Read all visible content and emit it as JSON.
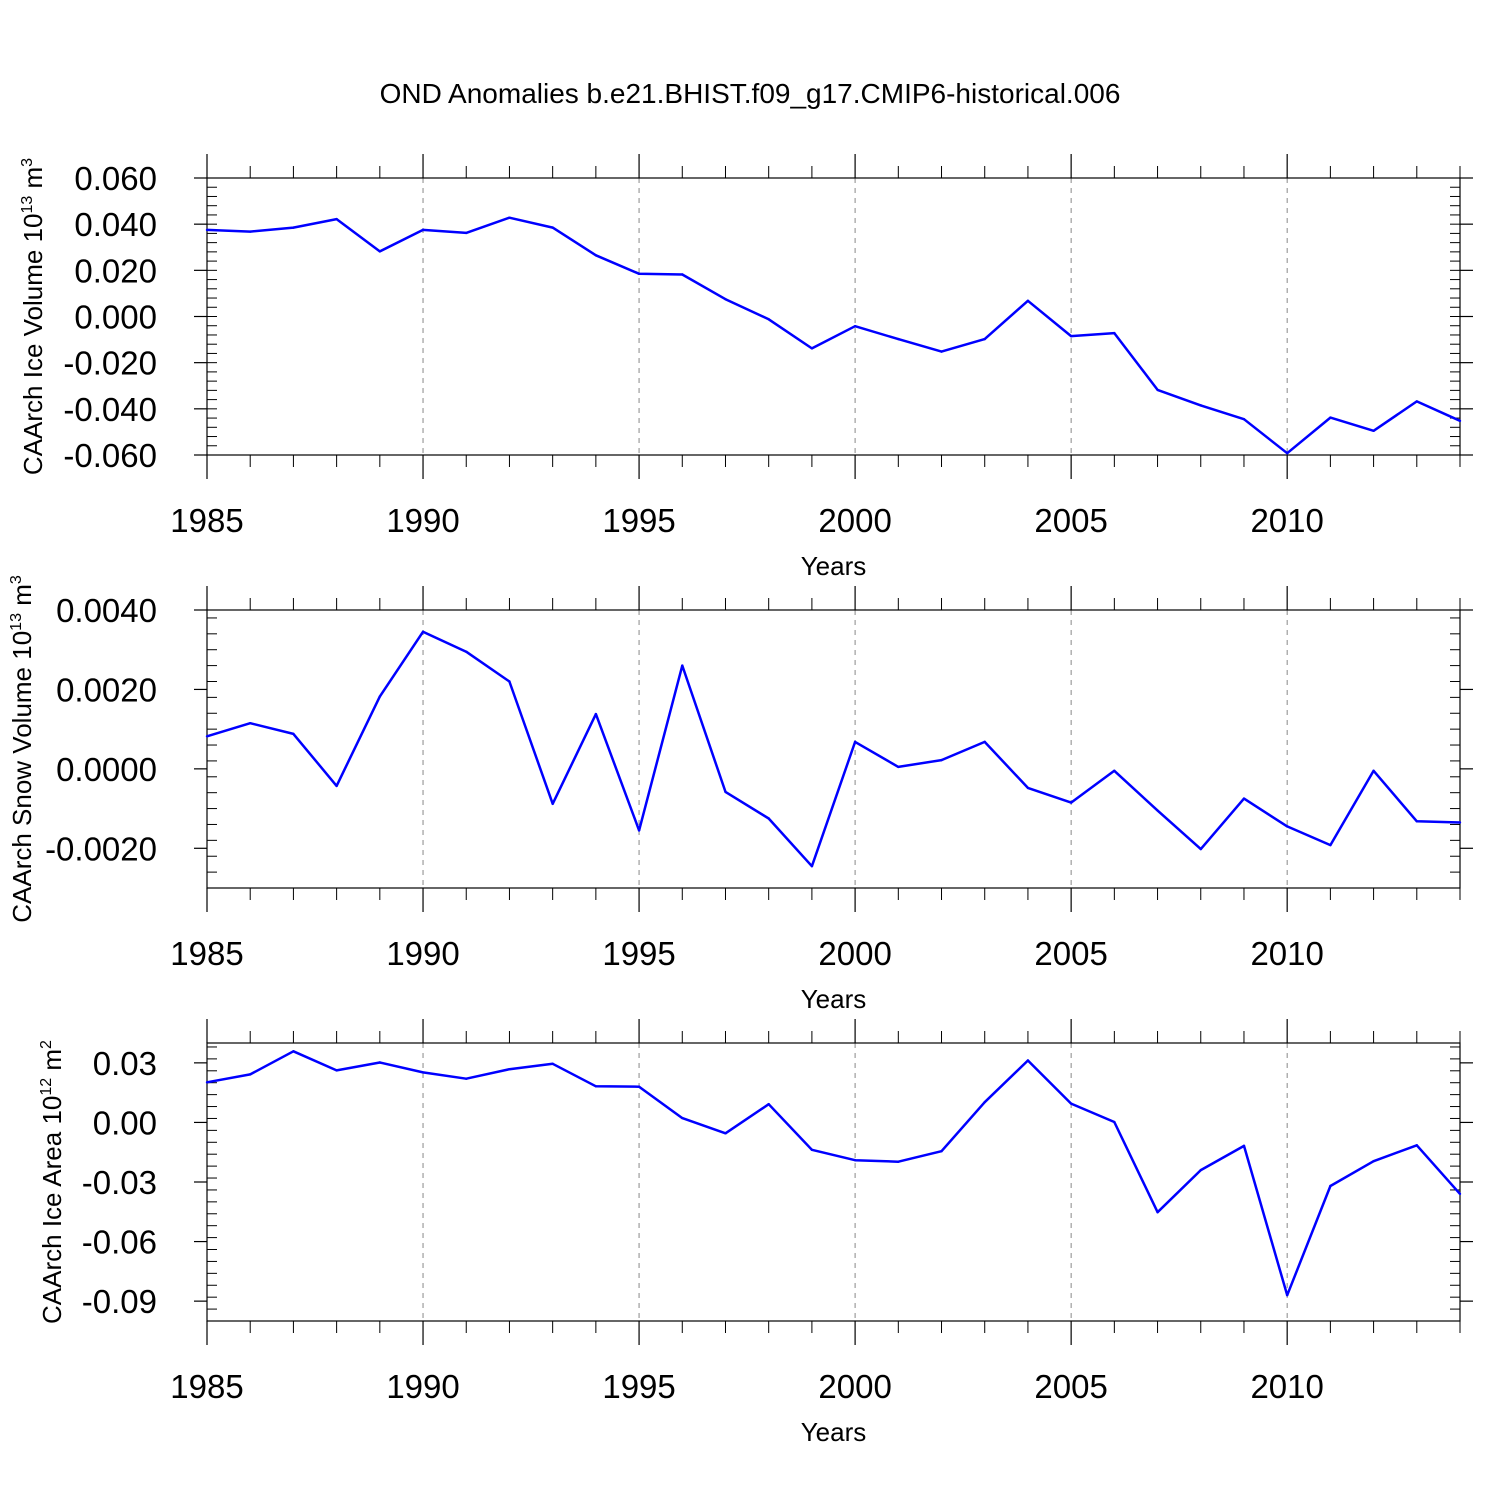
{
  "title": "OND Anomalies b.e21.BHIST.f09_g17.CMIP6-historical.006",
  "colors": {
    "series": "#0000ff",
    "frame": "#000000",
    "grid": "#888888"
  },
  "chart_data": [
    {
      "type": "line",
      "ylabel": {
        "main": "CAArch Ice Volume 10",
        "exp": "13",
        "unit": " m",
        "unit_exp": "3"
      },
      "xlabel": "Years",
      "xlim": [
        1985,
        2014
      ],
      "ylim": [
        -0.06,
        0.06
      ],
      "xticks": [
        1985,
        1990,
        1995,
        2000,
        2005,
        2010
      ],
      "xtick_labels": [
        "1985",
        "1990",
        "1995",
        "2000",
        "2005",
        "2010"
      ],
      "yticks": [
        -0.06,
        -0.04,
        -0.02,
        0.0,
        0.02,
        0.04,
        0.06
      ],
      "ytick_labels": [
        "-0.060",
        "-0.040",
        "-0.020",
        "0.000",
        "0.020",
        "0.040",
        "0.060"
      ],
      "x": [
        1985,
        1986,
        1987,
        1988,
        1989,
        1990,
        1991,
        1992,
        1993,
        1994,
        1995,
        1996,
        1997,
        1998,
        1999,
        2000,
        2001,
        2002,
        2003,
        2004,
        2005,
        2006,
        2007,
        2008,
        2009,
        2010,
        2011,
        2012,
        2013,
        2014
      ],
      "values": [
        0.0375,
        0.0368,
        0.0385,
        0.0422,
        0.0282,
        0.0375,
        0.0362,
        0.0428,
        0.0385,
        0.0265,
        0.0185,
        0.0182,
        0.0075,
        -0.0012,
        -0.0138,
        -0.0042,
        -0.0098,
        -0.0152,
        -0.0098,
        0.0068,
        -0.0085,
        -0.0072,
        -0.0318,
        -0.0385,
        -0.0445,
        -0.0592,
        -0.0438,
        -0.0495,
        -0.0368,
        -0.0452
      ],
      "grid": "vertical dashed at major x ticks"
    },
    {
      "type": "line",
      "ylabel": {
        "main": "CAArch Snow Volume 10",
        "exp": "13",
        "unit": " m",
        "unit_exp": "3"
      },
      "xlabel": "Years",
      "xlim": [
        1985,
        2014
      ],
      "ylim": [
        -0.003,
        0.004
      ],
      "xticks": [
        1985,
        1990,
        1995,
        2000,
        2005,
        2010
      ],
      "xtick_labels": [
        "1985",
        "1990",
        "1995",
        "2000",
        "2005",
        "2010"
      ],
      "yticks": [
        -0.002,
        0.0,
        0.002,
        0.004
      ],
      "ytick_labels": [
        "-0.0020",
        "0.0000",
        "0.0020",
        "0.0040"
      ],
      "x": [
        1985,
        1986,
        1987,
        1988,
        1989,
        1990,
        1991,
        1992,
        1993,
        1994,
        1995,
        1996,
        1997,
        1998,
        1999,
        2000,
        2001,
        2002,
        2003,
        2004,
        2005,
        2006,
        2007,
        2008,
        2009,
        2010,
        2011,
        2012,
        2013,
        2014
      ],
      "values": [
        0.00082,
        0.00115,
        0.00088,
        -0.00043,
        0.00182,
        0.00345,
        0.00295,
        0.0022,
        -0.00088,
        0.00138,
        -0.00155,
        0.0026,
        -0.00058,
        -0.00125,
        -0.00245,
        0.00068,
        5e-05,
        0.00022,
        0.00068,
        -0.00048,
        -0.00085,
        -5e-05,
        -0.00105,
        -0.00202,
        -0.00075,
        -0.00145,
        -0.00192,
        -5e-05,
        -0.00132,
        -0.00135
      ],
      "grid": "vertical dashed at major x ticks"
    },
    {
      "type": "line",
      "ylabel": {
        "main": "CAArch Ice Area 10",
        "exp": "12",
        "unit": " m",
        "unit_exp": "2"
      },
      "xlabel": "Years",
      "xlim": [
        1985,
        2014
      ],
      "ylim": [
        -0.1,
        0.04
      ],
      "xticks": [
        1985,
        1990,
        1995,
        2000,
        2005,
        2010
      ],
      "xtick_labels": [
        "1985",
        "1990",
        "1995",
        "2000",
        "2005",
        "2010"
      ],
      "yticks": [
        -0.09,
        -0.06,
        -0.03,
        0.0,
        0.03
      ],
      "ytick_labels": [
        "-0.09",
        "-0.06",
        "-0.03",
        "0.00",
        "0.03"
      ],
      "x": [
        1985,
        1986,
        1987,
        1988,
        1989,
        1990,
        1991,
        1992,
        1993,
        1994,
        1995,
        1996,
        1997,
        1998,
        1999,
        2000,
        2001,
        2002,
        2003,
        2004,
        2005,
        2006,
        2007,
        2008,
        2009,
        2010,
        2011,
        2012,
        2013,
        2014
      ],
      "values": [
        0.0202,
        0.0242,
        0.0358,
        0.0262,
        0.0302,
        0.0252,
        0.022,
        0.0268,
        0.0295,
        0.0182,
        0.018,
        0.0022,
        -0.0055,
        0.0092,
        -0.0138,
        -0.019,
        -0.0198,
        -0.0145,
        0.0102,
        0.0312,
        0.0095,
        0.0002,
        -0.0452,
        -0.024,
        -0.0118,
        -0.087,
        -0.032,
        -0.0195,
        -0.0115,
        -0.036
      ],
      "grid": "vertical dashed at major x ticks"
    }
  ]
}
